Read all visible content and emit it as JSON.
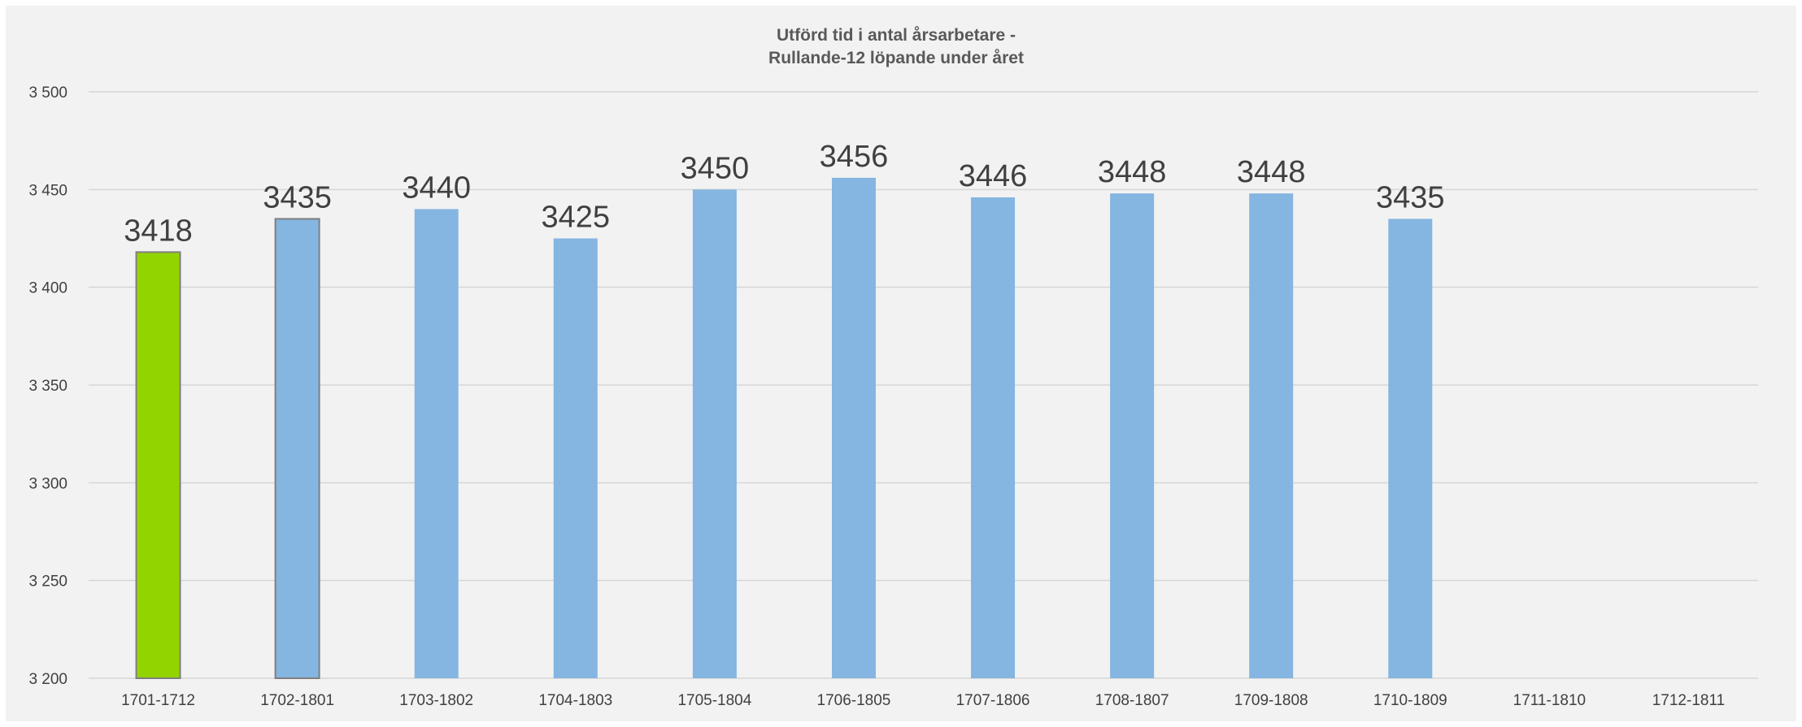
{
  "chart_data": {
    "type": "bar",
    "title": "Utförd tid i antal årsarbetare -",
    "subtitle": "Rullande-12 löpande under året",
    "categories": [
      "1701-1712",
      "1702-1801",
      "1703-1802",
      "1704-1803",
      "1705-1804",
      "1706-1805",
      "1707-1806",
      "1708-1807",
      "1709-1808",
      "1710-1809",
      "1711-1810",
      "1712-1811"
    ],
    "values": [
      3418,
      3435,
      3440,
      3425,
      3450,
      3456,
      3446,
      3448,
      3448,
      3435,
      null,
      null
    ],
    "data_labels": [
      "3418",
      "3435",
      "3440",
      "3425",
      "3450",
      "3456",
      "3446",
      "3448",
      "3448",
      "3435",
      "",
      ""
    ],
    "bar_colors": [
      "#92d400",
      "#85b5e1",
      "#85b5e1",
      "#85b5e1",
      "#85b5e1",
      "#85b5e1",
      "#85b5e1",
      "#85b5e1",
      "#85b5e1",
      "#85b5e1",
      "#85b5e1",
      "#85b5e1"
    ],
    "bar_outlines": [
      "#7f7f7f",
      "#7f7f7f",
      "none",
      "none",
      "none",
      "none",
      "none",
      "none",
      "none",
      "none",
      "none",
      "none"
    ],
    "y_ticks": [
      3200,
      3250,
      3300,
      3350,
      3400,
      3450,
      3500
    ],
    "y_tick_labels": [
      "3 200",
      "3 250",
      "3 300",
      "3 350",
      "3 400",
      "3 450",
      "3 500"
    ],
    "ylim": [
      3200,
      3500
    ],
    "xlabel": "",
    "ylabel": "",
    "grid": true,
    "legend": "none"
  }
}
